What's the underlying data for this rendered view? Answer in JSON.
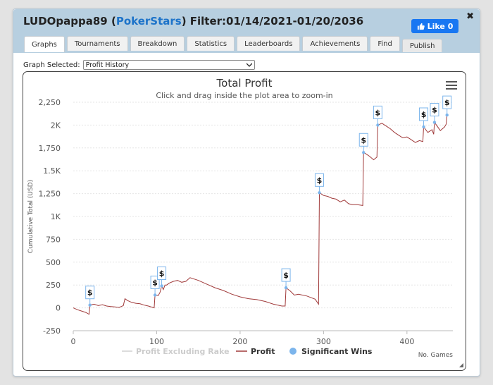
{
  "header": {
    "user": "LUDOpappa89",
    "site": "PokerStars",
    "filter": "Filter:01/14/2021-01/20/2036",
    "like_label": "Like 0",
    "close_glyph": "✖"
  },
  "tabs": [
    "Graphs",
    "Tournaments",
    "Breakdown",
    "Statistics",
    "Leaderboards",
    "Achievements",
    "Find",
    "Publish"
  ],
  "graph_selector": {
    "label": "Graph Selected:",
    "value": "Profit History"
  },
  "chart_data": {
    "type": "line",
    "title": "Total Profit",
    "subtitle": "Click and drag inside the plot area to zoom-in",
    "ylabel": "Cumulative Total (USD)",
    "xlabel": "No. Games",
    "xlim": [
      0,
      455
    ],
    "ylim": [
      -250,
      2250
    ],
    "x_ticks": [
      0,
      100,
      200,
      300,
      400
    ],
    "x_tick_labels": [
      "0",
      "100",
      "200",
      "300",
      "400"
    ],
    "y_ticks": [
      -250,
      0,
      250,
      500,
      750,
      1000,
      1250,
      1500,
      1750,
      2000,
      2250
    ],
    "y_tick_labels": [
      "-250",
      "0",
      "250",
      "500",
      "750",
      "1K",
      "1,250",
      "1.5K",
      "1,750",
      "2K",
      "2,250"
    ],
    "grid": true,
    "legend_position": "bottom",
    "legend": [
      "Profit Excluding Rake",
      "Profit",
      "Significant Wins"
    ],
    "colors": {
      "profit": "#a03a3a",
      "rake": "#d0d0d0",
      "wins": "#7cb5ec",
      "grid": "#e6e6e6"
    },
    "series": [
      {
        "name": "Profit",
        "x": [
          0,
          5,
          10,
          15,
          19,
          20,
          25,
          30,
          35,
          40,
          45,
          50,
          55,
          60,
          62,
          65,
          70,
          75,
          80,
          85,
          90,
          97,
          98,
          102,
          104,
          106,
          108,
          110,
          112,
          115,
          120,
          125,
          130,
          135,
          140,
          150,
          160,
          170,
          180,
          190,
          200,
          210,
          220,
          230,
          240,
          250,
          254,
          255,
          260,
          265,
          270,
          280,
          290,
          294,
          295,
          300,
          305,
          310,
          315,
          320,
          325,
          330,
          335,
          340,
          347,
          348,
          350,
          355,
          360,
          364,
          365,
          370,
          375,
          380,
          385,
          390,
          395,
          400,
          405,
          410,
          415,
          419,
          420,
          425,
          430,
          432,
          433,
          440,
          445,
          447,
          448
        ],
        "values": [
          0,
          -20,
          -35,
          -50,
          -70,
          30,
          40,
          25,
          35,
          20,
          15,
          10,
          5,
          25,
          100,
          80,
          60,
          50,
          45,
          30,
          20,
          0,
          140,
          135,
          170,
          240,
          200,
          250,
          250,
          270,
          290,
          300,
          280,
          290,
          330,
          300,
          260,
          220,
          190,
          150,
          120,
          100,
          90,
          70,
          40,
          20,
          20,
          220,
          185,
          140,
          150,
          130,
          95,
          40,
          1260,
          1230,
          1220,
          1200,
          1190,
          1160,
          1180,
          1140,
          1130,
          1130,
          1120,
          1700,
          1690,
          1660,
          1620,
          1650,
          2000,
          2020,
          1990,
          1960,
          1920,
          1890,
          1860,
          1870,
          1840,
          1810,
          1830,
          1820,
          1980,
          1920,
          1950,
          1900,
          2030,
          1940,
          1980,
          2010,
          2110
        ]
      },
      {
        "name": "Significant Wins",
        "x": [
          20,
          98,
          106,
          255,
          295,
          348,
          365,
          420,
          433,
          448
        ],
        "values": [
          30,
          140,
          240,
          220,
          1260,
          1700,
          2000,
          1980,
          2030,
          2110
        ]
      }
    ],
    "win_marker_label": "$"
  }
}
